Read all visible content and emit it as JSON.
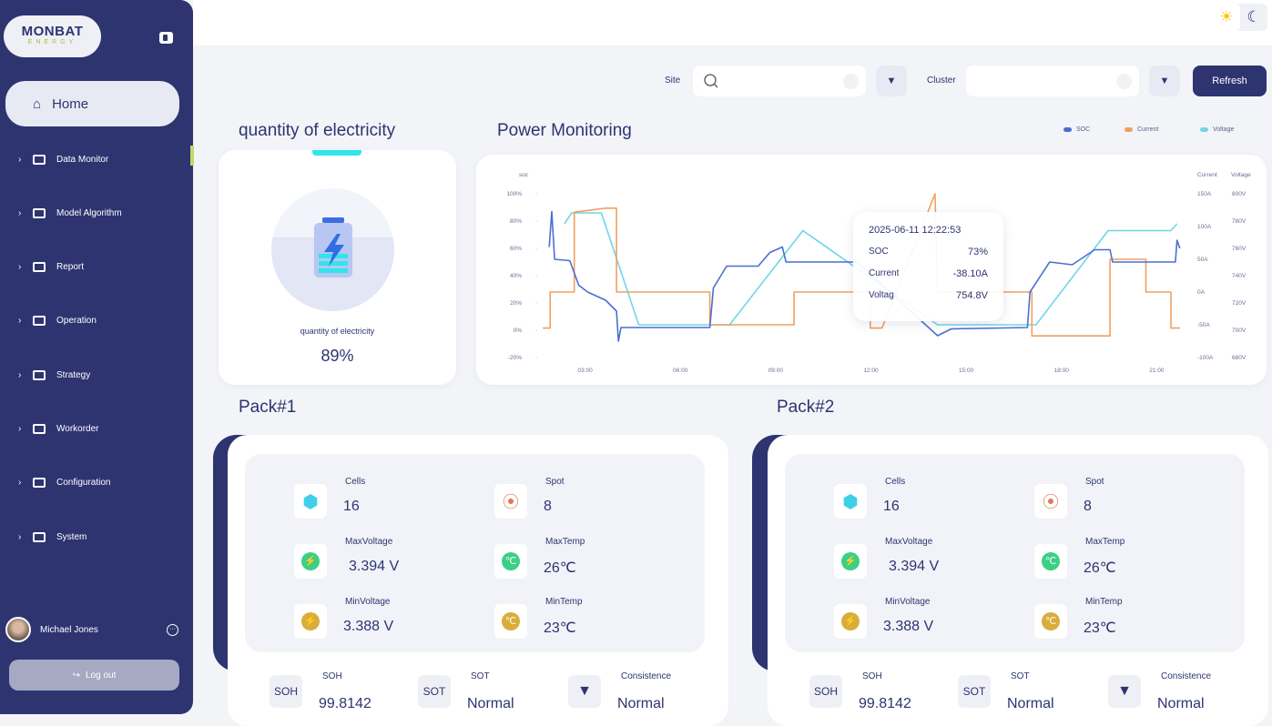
{
  "sidebar": {
    "logo_top": "MONBAT",
    "logo_bottom": "ENERGY",
    "home": "Home",
    "items": [
      {
        "label": "Data Monitor"
      },
      {
        "label": "Model Algorithm"
      },
      {
        "label": "Report"
      },
      {
        "label": "Operation"
      },
      {
        "label": "Strategy"
      },
      {
        "label": "Workorder"
      },
      {
        "label": "Configuration"
      },
      {
        "label": "System"
      }
    ],
    "user_name": "Michael Jones",
    "logout": "Log out"
  },
  "filters": {
    "site_label": "Site",
    "site_value": "",
    "cluster_label": "Cluster",
    "cluster_value": "",
    "refresh": "Refresh"
  },
  "quantity": {
    "title": "quantity of electricity",
    "label": "quantity of electricity",
    "value": "89%"
  },
  "power": {
    "title": "Power Monitoring",
    "tooltip": {
      "time": "2025-06-11 12:22:53",
      "rows": [
        {
          "label": "SOC",
          "value": "73%"
        },
        {
          "label": "Current",
          "value": "-38.10A"
        },
        {
          "label": "Voltag",
          "value": "754.8V"
        }
      ]
    }
  },
  "chart_data": {
    "type": "line",
    "title": "Power Monitoring",
    "legend": [
      "SOC",
      "Current",
      "Voltage"
    ],
    "legend_position": "top-right",
    "colors": {
      "SOC": "#4a6fd1",
      "Current": "#f0a060",
      "Voltage": "#6fd6e6"
    },
    "x_ticks": [
      "03:00",
      "06:00",
      "09:00",
      "12:00",
      "15:00",
      "18:00",
      "21:00"
    ],
    "x_tick_hours": [
      3,
      6,
      9,
      12,
      15,
      18,
      21
    ],
    "xlim": [
      1.55,
      21.85
    ],
    "y_left": {
      "label": "soc",
      "ticks": [
        "100%",
        "80%",
        "60%",
        "40%",
        "20%",
        "0%",
        "-20%"
      ],
      "lim": [
        -20,
        100
      ]
    },
    "y_right1": {
      "label": "Current",
      "ticks": [
        "150A",
        "100A",
        "50A",
        "0A",
        "-50A",
        "-100A"
      ],
      "lim": [
        -100,
        150
      ]
    },
    "y_right2": {
      "label": "Voltage",
      "ticks": [
        "800V",
        "780V",
        "760V",
        "740V",
        "720V",
        "700V",
        "680V"
      ],
      "lim": [
        680,
        800
      ]
    },
    "series": [
      {
        "name": "SOC",
        "axis": "left",
        "x": [
          1.87,
          1.95,
          2.04,
          2.52,
          2.8,
          3.08,
          3.65,
          3.99,
          4.05,
          4.13,
          6.93,
          7.04,
          7.46,
          8.45,
          8.82,
          9.21,
          9.33,
          11.56,
          14.1,
          14.53,
          16.93,
          17.01,
          17.63,
          18.34,
          19.05,
          19.53,
          19.61,
          21.59,
          21.64,
          21.73
        ],
        "y": [
          61,
          87,
          52,
          51,
          33,
          28,
          22,
          14,
          -8,
          2,
          2,
          31,
          47,
          47,
          57,
          61,
          50,
          50,
          -4,
          1,
          2,
          28,
          50,
          48,
          59,
          59,
          50,
          50,
          66,
          60
        ]
      },
      {
        "name": "Current",
        "axis": "right1",
        "x": [
          1.67,
          1.9,
          1.9,
          2.66,
          2.66,
          3.65,
          3.99,
          3.99,
          6.93,
          6.93,
          9.58,
          9.58,
          11.98,
          11.98,
          12.35,
          14.02,
          14.1,
          15.23,
          17.07,
          17.07,
          19.53,
          19.53,
          20.66,
          20.66,
          21.45,
          21.45,
          21.73
        ],
        "y": [
          -55,
          -55,
          0,
          0,
          122,
          128,
          128,
          0,
          0,
          -50,
          -50,
          0,
          0,
          -55,
          -55,
          150,
          0,
          0,
          0,
          -67,
          -67,
          50,
          50,
          0,
          0,
          -55,
          -55
        ]
      },
      {
        "name": "Voltage",
        "axis": "right2",
        "x": [
          2.35,
          2.58,
          3.51,
          4.69,
          7.55,
          9.86,
          14.1,
          17.2,
          19.47,
          21.45,
          21.64
        ],
        "y": [
          778,
          786,
          786,
          704,
          704,
          773,
          704,
          704,
          773,
          773,
          778
        ]
      }
    ]
  },
  "packs": [
    {
      "title": "Pack#1",
      "cells_label": "Cells",
      "cells": "16",
      "spot_label": "Spot",
      "spot": "8",
      "maxv_label": "MaxVoltage",
      "maxv": "3.394 V",
      "maxt_label": "MaxTemp",
      "maxt": "26℃",
      "minv_label": "MinVoltage",
      "minv": "3.388 V",
      "mint_label": "MinTemp",
      "mint": "23℃",
      "soh_icon": "SOH",
      "soh_label": "SOH",
      "soh": "99.8142",
      "sot_icon": "SOT",
      "sot_label": "SOT",
      "sot": "Normal",
      "cons_label": "Consistence",
      "cons": "Normal"
    },
    {
      "title": "Pack#2",
      "cells_label": "Cells",
      "cells": "16",
      "spot_label": "Spot",
      "spot": "8",
      "maxv_label": "MaxVoltage",
      "maxv": "3.394 V",
      "maxt_label": "MaxTemp",
      "maxt": "26℃",
      "minv_label": "MinVoltage",
      "minv": "3.388 V",
      "mint_label": "MinTemp",
      "mint": "23℃",
      "soh_icon": "SOH",
      "soh_label": "SOH",
      "soh": "99.8142",
      "sot_icon": "SOT",
      "sot_label": "SOT",
      "sot": "Normal",
      "cons_label": "Consistence",
      "cons": "Normal"
    }
  ]
}
